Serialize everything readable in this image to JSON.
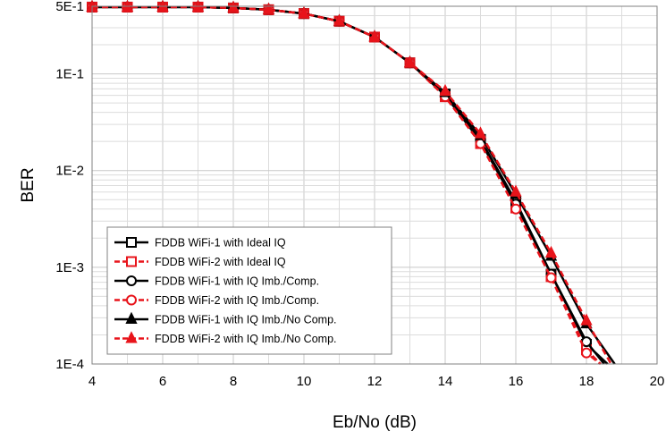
{
  "chart_data": {
    "type": "line",
    "title": "",
    "xlabel": "Eb/No (dB)",
    "ylabel": "BER",
    "xlim": [
      4,
      20
    ],
    "ylim": [
      0.0001,
      0.5
    ],
    "yscale": "log",
    "grid": true,
    "x_ticks": [
      4,
      6,
      8,
      10,
      12,
      14,
      16,
      18,
      20
    ],
    "x_tick_labels": [
      "4",
      "6",
      "8",
      "10",
      "12",
      "14",
      "16",
      "18",
      "20"
    ],
    "y_ticks": [
      0.5,
      0.1,
      0.01,
      0.001,
      0.0001
    ],
    "y_tick_labels": [
      "5E-1",
      "1E-1",
      "1E-2",
      "1E-3",
      "1E-4"
    ],
    "legend_position": "bottom-left",
    "series": [
      {
        "name": "FDDB WiFi-1 with Ideal IQ",
        "color": "#000000",
        "dash": "solid",
        "marker": "square",
        "x": [
          4,
          5,
          6,
          7,
          8,
          9,
          10,
          11,
          12,
          13,
          14,
          15,
          16,
          17,
          18,
          18.6
        ],
        "y": [
          0.49,
          0.49,
          0.49,
          0.49,
          0.48,
          0.46,
          0.42,
          0.35,
          0.24,
          0.13,
          0.062,
          0.021,
          0.0048,
          0.00085,
          0.00016,
          0.0001
        ]
      },
      {
        "name": "FDDB WiFi-2 with Ideal IQ",
        "color": "#e8141b",
        "dash": "dashed",
        "marker": "square",
        "x": [
          4,
          5,
          6,
          7,
          8,
          9,
          10,
          11,
          12,
          13,
          14,
          15,
          16,
          17,
          18,
          18.4
        ],
        "y": [
          0.49,
          0.49,
          0.49,
          0.49,
          0.48,
          0.46,
          0.42,
          0.35,
          0.24,
          0.13,
          0.058,
          0.019,
          0.0041,
          0.0008,
          0.00014,
          0.0001
        ]
      },
      {
        "name": "FDDB WiFi-1 with IQ Imb./Comp.",
        "color": "#000000",
        "dash": "solid",
        "marker": "circle",
        "x": [
          4,
          5,
          6,
          7,
          8,
          9,
          10,
          11,
          12,
          13,
          14,
          15,
          16,
          17,
          18,
          18.5
        ],
        "y": [
          0.49,
          0.49,
          0.49,
          0.49,
          0.48,
          0.46,
          0.42,
          0.35,
          0.24,
          0.13,
          0.06,
          0.02,
          0.0045,
          0.00085,
          0.00017,
          0.0001
        ]
      },
      {
        "name": "FDDB WiFi-2 with IQ Imb./Comp.",
        "color": "#e8141b",
        "dash": "dashed",
        "marker": "circle",
        "x": [
          4,
          5,
          6,
          7,
          8,
          9,
          10,
          11,
          12,
          13,
          14,
          15,
          16,
          17,
          18,
          18.4
        ],
        "y": [
          0.49,
          0.49,
          0.49,
          0.49,
          0.48,
          0.46,
          0.42,
          0.35,
          0.24,
          0.13,
          0.058,
          0.019,
          0.004,
          0.00078,
          0.00013,
          0.0001
        ]
      },
      {
        "name": "FDDB WiFi-1 with IQ Imb./No Comp.",
        "color": "#000000",
        "dash": "solid",
        "marker": "triangle",
        "x": [
          4,
          5,
          6,
          7,
          8,
          9,
          10,
          11,
          12,
          13,
          14,
          15,
          16,
          17,
          18,
          18.8
        ],
        "y": [
          0.49,
          0.49,
          0.49,
          0.49,
          0.48,
          0.46,
          0.42,
          0.35,
          0.24,
          0.13,
          0.064,
          0.023,
          0.0057,
          0.0013,
          0.00026,
          0.0001
        ]
      },
      {
        "name": "FDDB WiFi-2 with IQ Imb./No Comp.",
        "color": "#e8141b",
        "dash": "dashed",
        "marker": "triangle",
        "x": [
          4,
          5,
          6,
          7,
          8,
          9,
          10,
          11,
          12,
          13,
          14,
          15,
          16,
          17,
          18,
          18.7
        ],
        "y": [
          0.49,
          0.49,
          0.49,
          0.49,
          0.48,
          0.46,
          0.42,
          0.35,
          0.24,
          0.13,
          0.066,
          0.024,
          0.006,
          0.0014,
          0.00028,
          0.0001
        ]
      }
    ]
  }
}
